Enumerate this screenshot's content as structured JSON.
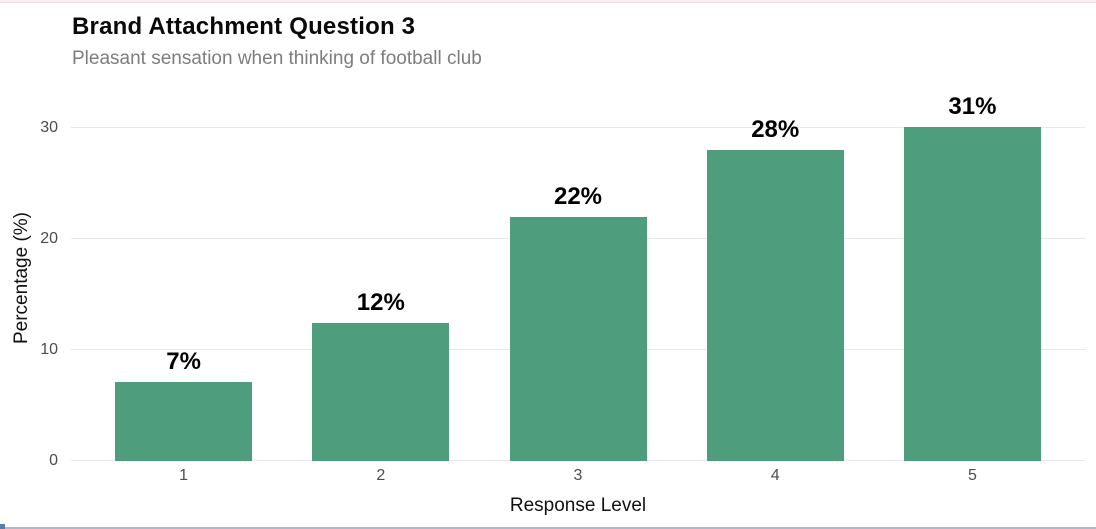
{
  "window": {
    "top_strip_color": "#fbeff1",
    "bottom_strip_color": "#adb9ca",
    "bottom_corner_color": "#5e7ba3"
  },
  "header": {
    "title": "Brand Attachment Question 3",
    "subtitle": "Pleasant sensation when thinking of football club"
  },
  "chart_data": {
    "type": "bar",
    "title": "Brand Attachment Question 3",
    "subtitle": "Pleasant sensation when thinking of football club",
    "categories": [
      "1",
      "2",
      "3",
      "4",
      "5"
    ],
    "values": [
      7.1,
      12.4,
      22.0,
      28.0,
      30.7
    ],
    "labels": [
      "7%",
      "12%",
      "22%",
      "28%",
      "31%"
    ],
    "xlabel": "Response Level",
    "ylabel": "Percentage (%)",
    "yticks": [
      0,
      10,
      20,
      30
    ],
    "ylim": [
      0,
      33
    ],
    "bar_color": "#4e9d7c",
    "gridline_color": "#e8e8e8",
    "tick_label_color": "#4d4d4d",
    "grid": "horizontal-major-only",
    "legend": "none"
  }
}
